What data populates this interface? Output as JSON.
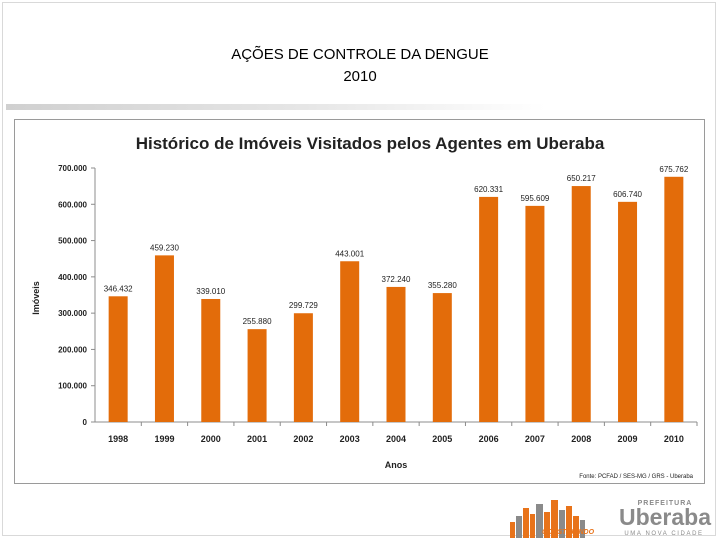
{
  "slide": {
    "title_line1": "AÇÕES DE CONTROLE DA DENGUE",
    "title_line2": "2010"
  },
  "chart_data": {
    "type": "bar",
    "title": "Histórico de Imóveis Visitados pelos Agentes em Uberaba",
    "xlabel": "Anos",
    "ylabel": "Imóveis",
    "categories": [
      "1998",
      "1999",
      "2000",
      "2001",
      "2002",
      "2003",
      "2004",
      "2005",
      "2006",
      "2007",
      "2008",
      "2009",
      "2010"
    ],
    "values": [
      346432,
      459230,
      339010,
      255880,
      299729,
      443001,
      372240,
      355280,
      620331,
      595609,
      650217,
      606740,
      675762
    ],
    "data_labels": [
      "346.432",
      "459.230",
      "339.010",
      "255.880",
      "299.729",
      "443.001",
      "372.240",
      "355.280",
      "620.331",
      "595.609",
      "650.217",
      "606.740",
      "675.762"
    ],
    "ylim": [
      0,
      700000
    ],
    "yticks": [
      0,
      100000,
      200000,
      300000,
      400000,
      500000,
      600000,
      700000
    ],
    "ytick_labels": [
      "0",
      "100.000",
      "200.000",
      "300.000",
      "400.000",
      "500.000",
      "600.000",
      "700.000"
    ],
    "source": "Fonte: PCFAD / SES-MG / GRS - Uberaba",
    "bar_color": "#e36c0a",
    "grid": false,
    "legend": "none"
  },
  "logo": {
    "top_text": "PREFEITURA",
    "name": "Uberaba",
    "slogan": "UMA NOVA CIDADE",
    "tag": "CONSTRUINDO",
    "color_orange": "#e8731a",
    "color_gray": "#8a8a8a"
  }
}
